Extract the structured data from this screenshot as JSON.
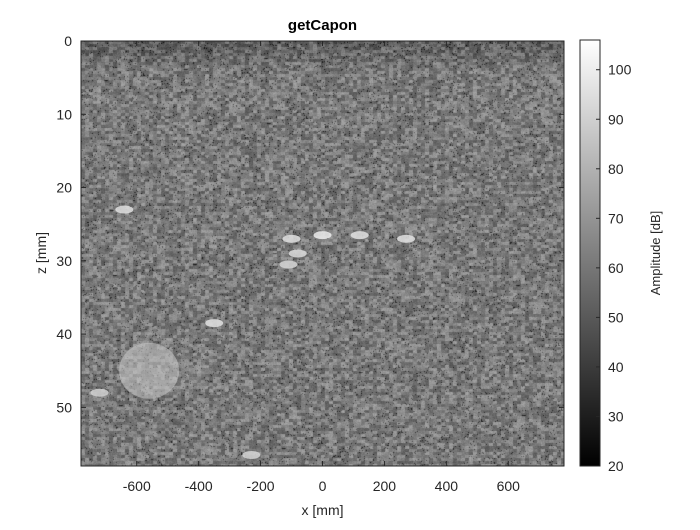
{
  "chart_data": {
    "type": "heatmap",
    "title": "getCapon",
    "xlabel": "x [mm]",
    "ylabel": "z [mm]",
    "xlim": [
      -780,
      780
    ],
    "ylim": [
      0,
      58
    ],
    "y_reversed": true,
    "xticks": [
      -600,
      -400,
      -200,
      0,
      200,
      400,
      600
    ],
    "yticks": [
      0,
      10,
      20,
      30,
      40,
      50
    ],
    "colormap": "gray",
    "colorbar": {
      "label": "Amplitude [dB]",
      "range": [
        20,
        106
      ],
      "ticks": [
        20,
        30,
        40,
        50,
        60,
        70,
        80,
        90,
        100
      ]
    },
    "background_level_db": 62,
    "bright_features": [
      {
        "x": -560,
        "z": 45,
        "label": "bright cyst region",
        "level_db": 88
      },
      {
        "x": -640,
        "z": 23,
        "label": "point target",
        "level_db": 96
      },
      {
        "x": -350,
        "z": 38.5,
        "label": "point target",
        "level_db": 96
      },
      {
        "x": -230,
        "z": 56.5,
        "label": "point target",
        "level_db": 92
      },
      {
        "x": -720,
        "z": 48,
        "label": "point target",
        "level_db": 90
      },
      {
        "x": -100,
        "z": 27,
        "label": "point target",
        "level_db": 96
      },
      {
        "x": 0,
        "z": 26.5,
        "label": "point target",
        "level_db": 100
      },
      {
        "x": 120,
        "z": 26.5,
        "label": "point target",
        "level_db": 96
      },
      {
        "x": 270,
        "z": 27,
        "label": "point target",
        "level_db": 96
      },
      {
        "x": -80,
        "z": 29,
        "label": "point target",
        "level_db": 94
      },
      {
        "x": -110,
        "z": 30.5,
        "label": "point target",
        "level_db": 92
      }
    ]
  }
}
